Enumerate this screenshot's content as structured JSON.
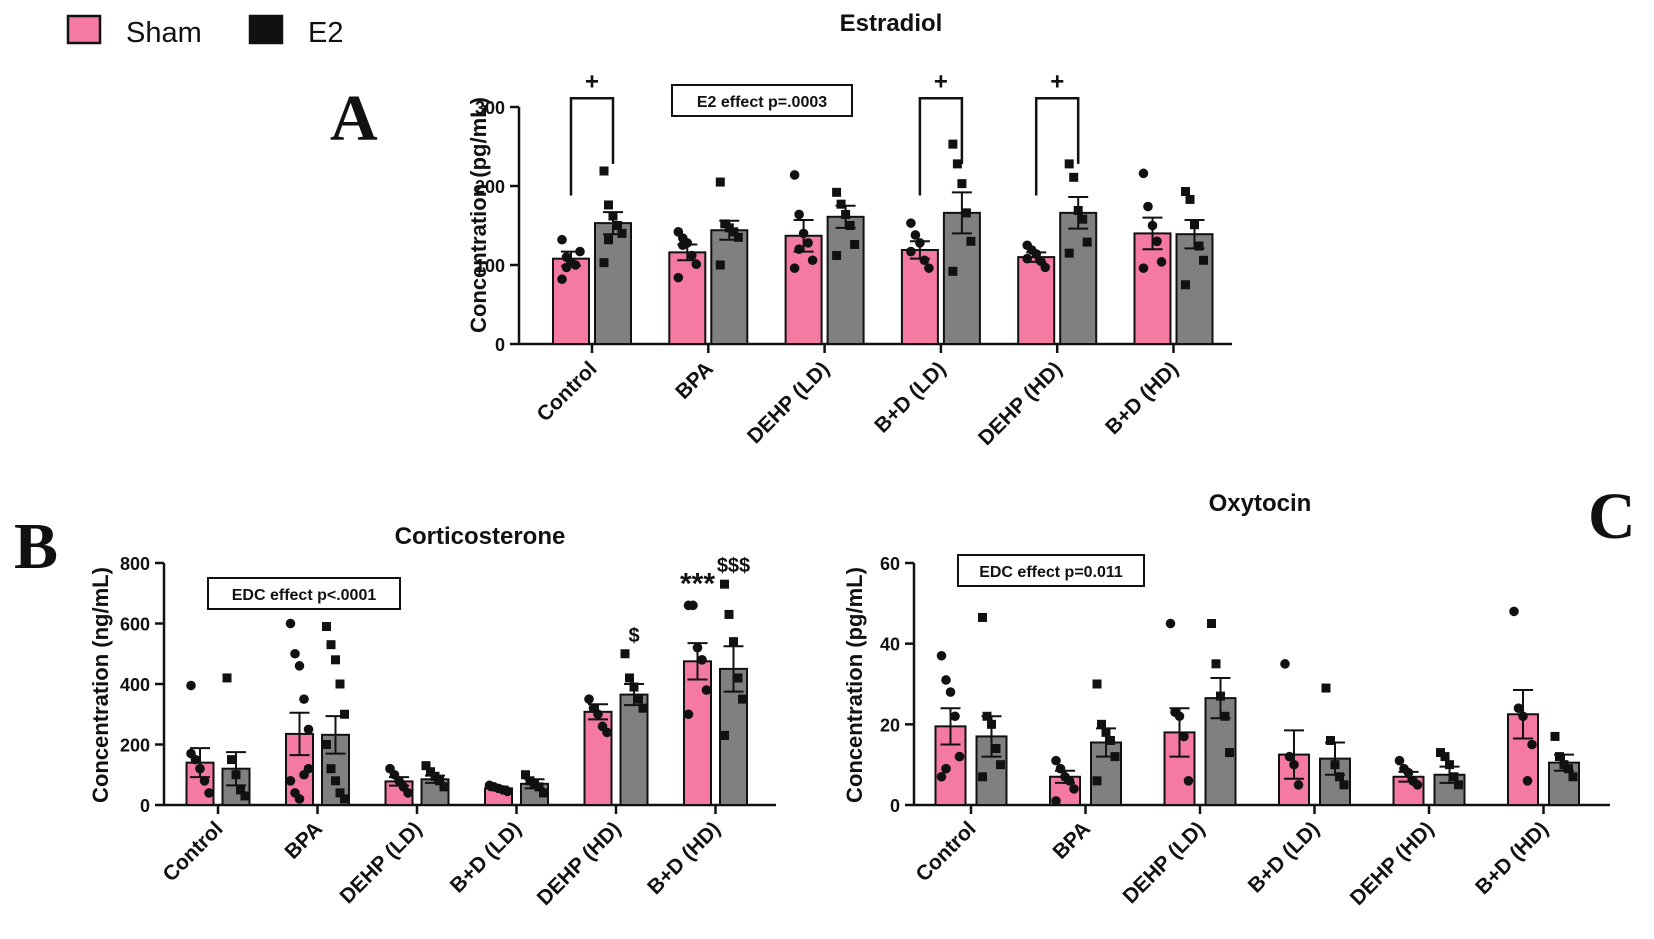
{
  "legend": {
    "items": [
      {
        "label": "Sham",
        "color": "#f47aa1"
      },
      {
        "label": "E2",
        "color": "#111111"
      }
    ]
  },
  "panel_labels": {
    "a": "A",
    "b": "B",
    "c": "C"
  },
  "colors": {
    "sham": "#f47aa1",
    "e2_fill": "#808080",
    "e2_legend": "#111111"
  },
  "chart_data": [
    {
      "id": "A",
      "type": "bar",
      "title": "Estradiol",
      "ylabel": "Concentration (pg/mL)",
      "xlabel": "",
      "ylim": [
        0,
        300
      ],
      "yticks": [
        0,
        100,
        200,
        300
      ],
      "categories": [
        "Control",
        "BPA",
        "DEHP (LD)",
        "B+D (LD)",
        "DEHP (HD)",
        "B+D (HD)"
      ],
      "series": [
        {
          "name": "Sham",
          "values": [
            108,
            116,
            137,
            119,
            110,
            140
          ],
          "sem": [
            9,
            10,
            20,
            11,
            6,
            20
          ],
          "points": [
            [
              132,
              110,
              103,
              100,
              117,
              82,
              97
            ],
            [
              142,
              134,
              128,
              112,
              101,
              84,
              125
            ],
            [
              214,
              164,
              140,
              128,
              106,
              96,
              120
            ],
            [
              153,
              138,
              128,
              106,
              96,
              117
            ],
            [
              125,
              119,
              114,
              105,
              97,
              108
            ],
            [
              216,
              174,
              150,
              130,
              104,
              96
            ]
          ]
        },
        {
          "name": "E2",
          "values": [
            153,
            144,
            161,
            166,
            166,
            139
          ],
          "sem": [
            14,
            12,
            14,
            26,
            20,
            18
          ],
          "points": [
            [
              219,
              176,
              162,
              150,
              140,
              103,
              132
            ],
            [
              205,
              152,
              147,
              142,
              135,
              100
            ],
            [
              192,
              177,
              164,
              150,
              126,
              112
            ],
            [
              253,
              228,
              203,
              166,
              130,
              92
            ],
            [
              228,
              211,
              169,
              158,
              129,
              115
            ],
            [
              193,
              183,
              151,
              124,
              106,
              75
            ]
          ]
        }
      ],
      "brackets": [
        {
          "category": "Control",
          "label": "+"
        },
        {
          "category": "B+D (LD)",
          "label": "+"
        },
        {
          "category": "DEHP (HD)",
          "label": "+"
        }
      ],
      "annotation": "E2 effect p=.0003"
    },
    {
      "id": "B",
      "type": "bar",
      "title": "Corticosterone",
      "ylabel": "Concentration (ng/mL)",
      "xlabel": "",
      "ylim": [
        0,
        800
      ],
      "yticks": [
        0,
        200,
        400,
        600,
        800
      ],
      "categories": [
        "Control",
        "BPA",
        "DEHP (LD)",
        "B+D (LD)",
        "DEHP (HD)",
        "B+D (HD)"
      ],
      "series": [
        {
          "name": "Sham",
          "values": [
            140,
            235,
            78,
            55,
            308,
            475
          ],
          "sem": [
            48,
            70,
            14,
            6,
            25,
            60
          ],
          "points": [
            [
              395,
              150,
              120,
              80,
              40,
              170
            ],
            [
              600,
              500,
              460,
              350,
              120,
              80,
              40,
              20,
              100,
              250
            ],
            [
              120,
              100,
              80,
              60,
              40
            ],
            [
              65,
              60,
              55,
              50,
              45
            ],
            [
              350,
              320,
              300,
              260,
              240
            ],
            [
              660,
              660,
              520,
              480,
              380,
              300
            ]
          ]
        },
        {
          "name": "E2",
          "values": [
            120,
            232,
            85,
            70,
            365,
            450
          ],
          "sem": [
            55,
            62,
            12,
            15,
            35,
            75
          ],
          "points": [
            [
              420,
              150,
              100,
              50,
              30
            ],
            [
              590,
              530,
              480,
              400,
              300,
              200,
              120,
              80,
              40,
              20
            ],
            [
              130,
              110,
              95,
              80,
              60
            ],
            [
              100,
              80,
              70,
              60,
              40
            ],
            [
              500,
              420,
              390,
              350,
              320
            ],
            [
              730,
              630,
              540,
              420,
              350,
              230
            ]
          ]
        }
      ],
      "markers": [
        {
          "category": "DEHP (HD)",
          "series": "E2",
          "label": "$"
        },
        {
          "category": "B+D (HD)",
          "series": "Sham",
          "label": "***"
        },
        {
          "category": "B+D (HD)",
          "series": "E2",
          "label": "$$$"
        }
      ],
      "annotation": "EDC effect p<.0001"
    },
    {
      "id": "C",
      "type": "bar",
      "title": "Oxytocin",
      "ylabel": "Concentration (pg/mL)",
      "xlabel": "",
      "ylim": [
        0,
        60
      ],
      "yticks": [
        0,
        20,
        40,
        60
      ],
      "categories": [
        "Control",
        "BPA",
        "DEHP (LD)",
        "B+D (LD)",
        "DEHP (HD)",
        "B+D (HD)"
      ],
      "series": [
        {
          "name": "Sham",
          "values": [
            19.5,
            7,
            18,
            12.5,
            7,
            22.5
          ],
          "sem": [
            4.5,
            1.5,
            6,
            6,
            1.2,
            6
          ],
          "points": [
            [
              37,
              31,
              28,
              22,
              12,
              7,
              9
            ],
            [
              11,
              9,
              7,
              6,
              4,
              1
            ],
            [
              45,
              23,
              22,
              17,
              6
            ],
            [
              35,
              12,
              10,
              5
            ],
            [
              11,
              9,
              8,
              6,
              5
            ],
            [
              48,
              24,
              22,
              6,
              15
            ]
          ]
        },
        {
          "name": "E2",
          "values": [
            17,
            15.5,
            26.5,
            11.5,
            7.5,
            10.5
          ],
          "sem": [
            5,
            3.5,
            5,
            4,
            2,
            2
          ],
          "points": [
            [
              46.5,
              22,
              20,
              14,
              10,
              7
            ],
            [
              30,
              20,
              18,
              16,
              12,
              6
            ],
            [
              45,
              35,
              27,
              22,
              13
            ],
            [
              29,
              16,
              10,
              7,
              5
            ],
            [
              13,
              12,
              10,
              7,
              5
            ],
            [
              17,
              12,
              10,
              9,
              7
            ]
          ]
        }
      ],
      "annotation": "EDC effect p=0.011"
    }
  ]
}
